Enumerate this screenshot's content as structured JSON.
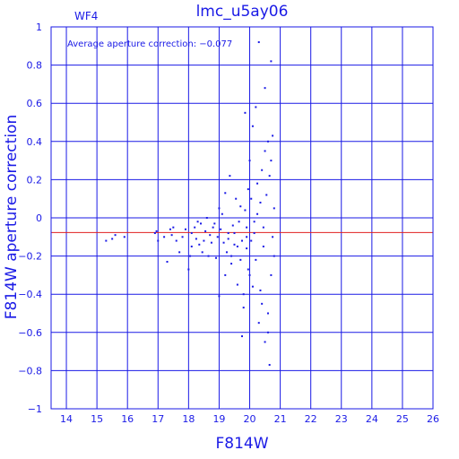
{
  "chart_data": {
    "type": "scatter",
    "title": "lmc_u5ay06",
    "chip_label": "WF4",
    "annotation": "Average aperture correction: −0.077",
    "xlabel": "F814W",
    "ylabel": "F814W aperture correction",
    "xlim": [
      13.5,
      26
    ],
    "ylim": [
      -1,
      1
    ],
    "x_ticks": [
      14,
      15,
      16,
      17,
      18,
      19,
      20,
      21,
      22,
      23,
      24,
      25,
      26
    ],
    "y_ticks": [
      -1,
      -0.8,
      -0.6,
      -0.4,
      -0.2,
      0,
      0.2,
      0.4,
      0.6,
      0.8,
      1
    ],
    "y_tick_labels": [
      "−1",
      "−0.8",
      "−0.6",
      "−0.4",
      "−0.2",
      "0",
      "0.2",
      "0.4",
      "0.6",
      "0.8",
      "1"
    ],
    "grid": true,
    "reference_line": {
      "y": -0.077,
      "color": "#e02020"
    },
    "colors": {
      "points": "#1a1ae6",
      "axes": "#1a1ae6",
      "grid": "#1a1ae6"
    },
    "points": [
      [
        15.3,
        -0.12
      ],
      [
        15.6,
        -0.09
      ],
      [
        15.9,
        -0.1
      ],
      [
        15.5,
        -0.11
      ],
      [
        16.9,
        -0.08
      ],
      [
        16.95,
        -0.07
      ],
      [
        17.0,
        -0.12
      ],
      [
        17.2,
        -0.1
      ],
      [
        17.3,
        -0.23
      ],
      [
        17.4,
        -0.06
      ],
      [
        17.45,
        -0.09
      ],
      [
        17.5,
        -0.05
      ],
      [
        17.6,
        -0.12
      ],
      [
        17.7,
        -0.18
      ],
      [
        17.8,
        -0.1
      ],
      [
        17.9,
        -0.06
      ],
      [
        18.0,
        -0.27
      ],
      [
        18.05,
        -0.2
      ],
      [
        18.1,
        -0.15
      ],
      [
        18.1,
        -0.08
      ],
      [
        18.2,
        -0.05
      ],
      [
        18.25,
        -0.11
      ],
      [
        18.3,
        -0.02
      ],
      [
        18.35,
        -0.14
      ],
      [
        18.4,
        -0.03
      ],
      [
        18.45,
        -0.18
      ],
      [
        18.5,
        -0.12
      ],
      [
        18.55,
        -0.07
      ],
      [
        18.6,
        0.0
      ],
      [
        18.65,
        -0.2
      ],
      [
        18.7,
        -0.09
      ],
      [
        18.75,
        -0.13
      ],
      [
        18.8,
        -0.05
      ],
      [
        18.85,
        -0.03
      ],
      [
        18.9,
        -0.21
      ],
      [
        18.95,
        -0.1
      ],
      [
        19.0,
        -0.41
      ],
      [
        19.0,
        0.05
      ],
      [
        19.05,
        -0.06
      ],
      [
        19.1,
        0.02
      ],
      [
        19.15,
        -0.13
      ],
      [
        19.2,
        -0.3
      ],
      [
        19.2,
        0.13
      ],
      [
        19.25,
        -0.18
      ],
      [
        19.3,
        -0.08
      ],
      [
        19.35,
        0.22
      ],
      [
        19.4,
        -0.24
      ],
      [
        19.45,
        -0.04
      ],
      [
        19.5,
        -0.14
      ],
      [
        19.55,
        0.1
      ],
      [
        19.6,
        -0.35
      ],
      [
        19.65,
        -0.02
      ],
      [
        19.7,
        -0.22
      ],
      [
        19.75,
        -0.12
      ],
      [
        19.8,
        -0.4
      ],
      [
        19.85,
        0.04
      ],
      [
        19.9,
        -0.16
      ],
      [
        19.95,
        -0.27
      ],
      [
        19.8,
        -0.47
      ],
      [
        19.75,
        -0.62
      ],
      [
        19.3,
        -0.11
      ],
      [
        19.4,
        -0.2
      ],
      [
        19.5,
        -0.08
      ],
      [
        19.6,
        -0.15
      ],
      [
        19.7,
        0.06
      ],
      [
        19.9,
        -0.05
      ],
      [
        19.95,
        0.15
      ],
      [
        19.85,
        0.55
      ],
      [
        20.0,
        -0.3
      ],
      [
        20.0,
        0.3
      ],
      [
        20.05,
        -0.12
      ],
      [
        20.1,
        0.48
      ],
      [
        20.1,
        -0.36
      ],
      [
        20.15,
        -0.02
      ],
      [
        20.2,
        0.58
      ],
      [
        20.2,
        -0.22
      ],
      [
        20.25,
        0.18
      ],
      [
        20.3,
        -0.55
      ],
      [
        20.3,
        0.92
      ],
      [
        20.35,
        0.08
      ],
      [
        20.4,
        -0.45
      ],
      [
        20.4,
        0.25
      ],
      [
        20.45,
        -0.15
      ],
      [
        20.5,
        0.68
      ],
      [
        20.5,
        -0.65
      ],
      [
        20.55,
        0.12
      ],
      [
        20.6,
        -0.5
      ],
      [
        20.6,
        0.4
      ],
      [
        20.65,
        -0.77
      ],
      [
        20.65,
        0.22
      ],
      [
        20.7,
        -0.3
      ],
      [
        20.7,
        0.82
      ],
      [
        20.75,
        -0.1
      ],
      [
        20.75,
        0.43
      ],
      [
        20.8,
        0.05
      ],
      [
        20.8,
        -0.2
      ],
      [
        20.7,
        0.3
      ],
      [
        20.6,
        -0.6
      ],
      [
        20.5,
        0.35
      ],
      [
        20.45,
        -0.05
      ],
      [
        20.35,
        -0.38
      ],
      [
        20.25,
        0.02
      ],
      [
        20.15,
        -0.08
      ],
      [
        20.05,
        0.1
      ],
      [
        19.9,
        -0.1
      ]
    ]
  }
}
